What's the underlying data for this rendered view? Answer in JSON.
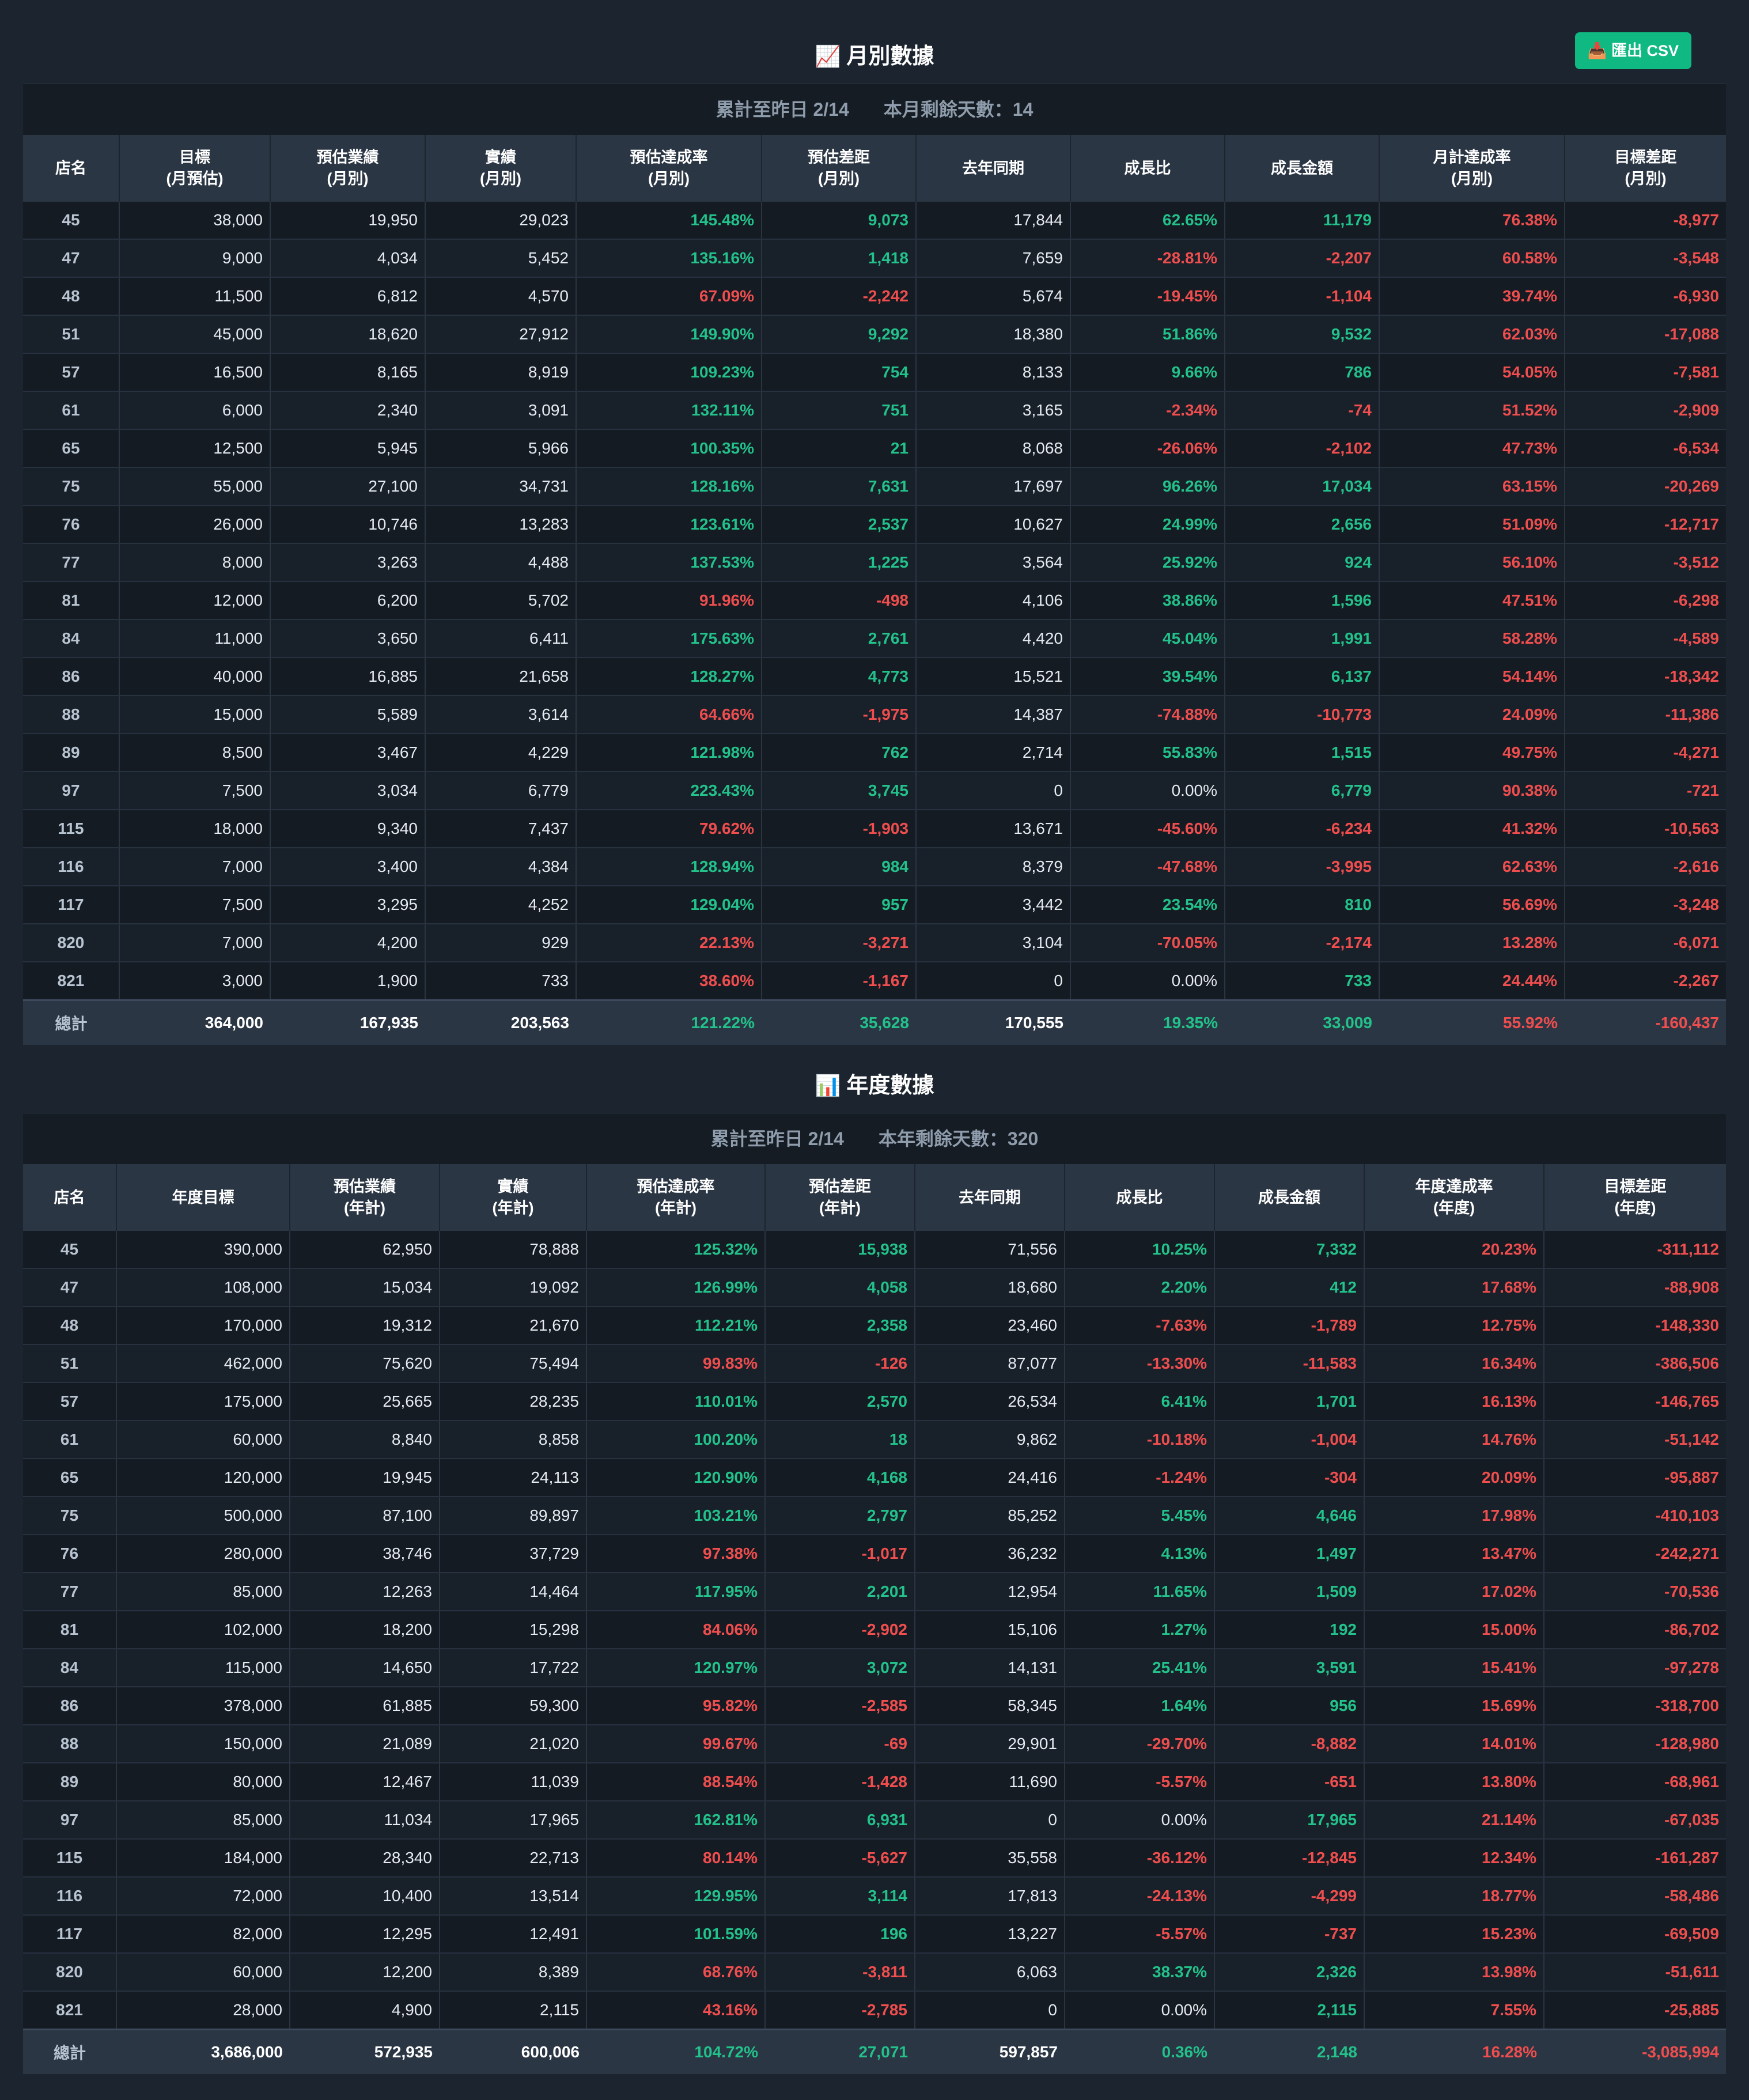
{
  "colors": {
    "positive": "#22c28a",
    "negative": "#f04e4e",
    "accent": "#10b981",
    "background": "#1c252f"
  },
  "export_button": {
    "icon": "inbox-tray-icon",
    "label": "📥 匯出 CSV"
  },
  "monthly": {
    "icon": "chart-increasing-icon",
    "icon_glyph": "📈",
    "title": "月別數據",
    "info_left": "累計至昨日 2/14",
    "info_right": "本月剩餘天數：14",
    "headers": [
      "店名",
      "目標\n(月預估)",
      "預估業績\n(月別)",
      "實績\n(月別)",
      "預估達成率\n(月別)",
      "預估差距\n(月別)",
      "去年同期",
      "成長比",
      "成長金額",
      "月計達成率\n(月別)",
      "目標差距\n(月別)"
    ],
    "rows": [
      [
        "45",
        "38,000",
        "19,950",
        "29,023",
        "145.48%",
        "9,073",
        "17,844",
        "62.65%",
        "11,179",
        "76.38%",
        "-8,977"
      ],
      [
        "47",
        "9,000",
        "4,034",
        "5,452",
        "135.16%",
        "1,418",
        "7,659",
        "-28.81%",
        "-2,207",
        "60.58%",
        "-3,548"
      ],
      [
        "48",
        "11,500",
        "6,812",
        "4,570",
        "67.09%",
        "-2,242",
        "5,674",
        "-19.45%",
        "-1,104",
        "39.74%",
        "-6,930"
      ],
      [
        "51",
        "45,000",
        "18,620",
        "27,912",
        "149.90%",
        "9,292",
        "18,380",
        "51.86%",
        "9,532",
        "62.03%",
        "-17,088"
      ],
      [
        "57",
        "16,500",
        "8,165",
        "8,919",
        "109.23%",
        "754",
        "8,133",
        "9.66%",
        "786",
        "54.05%",
        "-7,581"
      ],
      [
        "61",
        "6,000",
        "2,340",
        "3,091",
        "132.11%",
        "751",
        "3,165",
        "-2.34%",
        "-74",
        "51.52%",
        "-2,909"
      ],
      [
        "65",
        "12,500",
        "5,945",
        "5,966",
        "100.35%",
        "21",
        "8,068",
        "-26.06%",
        "-2,102",
        "47.73%",
        "-6,534"
      ],
      [
        "75",
        "55,000",
        "27,100",
        "34,731",
        "128.16%",
        "7,631",
        "17,697",
        "96.26%",
        "17,034",
        "63.15%",
        "-20,269"
      ],
      [
        "76",
        "26,000",
        "10,746",
        "13,283",
        "123.61%",
        "2,537",
        "10,627",
        "24.99%",
        "2,656",
        "51.09%",
        "-12,717"
      ],
      [
        "77",
        "8,000",
        "3,263",
        "4,488",
        "137.53%",
        "1,225",
        "3,564",
        "25.92%",
        "924",
        "56.10%",
        "-3,512"
      ],
      [
        "81",
        "12,000",
        "6,200",
        "5,702",
        "91.96%",
        "-498",
        "4,106",
        "38.86%",
        "1,596",
        "47.51%",
        "-6,298"
      ],
      [
        "84",
        "11,000",
        "3,650",
        "6,411",
        "175.63%",
        "2,761",
        "4,420",
        "45.04%",
        "1,991",
        "58.28%",
        "-4,589"
      ],
      [
        "86",
        "40,000",
        "16,885",
        "21,658",
        "128.27%",
        "4,773",
        "15,521",
        "39.54%",
        "6,137",
        "54.14%",
        "-18,342"
      ],
      [
        "88",
        "15,000",
        "5,589",
        "3,614",
        "64.66%",
        "-1,975",
        "14,387",
        "-74.88%",
        "-10,773",
        "24.09%",
        "-11,386"
      ],
      [
        "89",
        "8,500",
        "3,467",
        "4,229",
        "121.98%",
        "762",
        "2,714",
        "55.83%",
        "1,515",
        "49.75%",
        "-4,271"
      ],
      [
        "97",
        "7,500",
        "3,034",
        "6,779",
        "223.43%",
        "3,745",
        "0",
        "0.00%",
        "6,779",
        "90.38%",
        "-721"
      ],
      [
        "115",
        "18,000",
        "9,340",
        "7,437",
        "79.62%",
        "-1,903",
        "13,671",
        "-45.60%",
        "-6,234",
        "41.32%",
        "-10,563"
      ],
      [
        "116",
        "7,000",
        "3,400",
        "4,384",
        "128.94%",
        "984",
        "8,379",
        "-47.68%",
        "-3,995",
        "62.63%",
        "-2,616"
      ],
      [
        "117",
        "7,500",
        "3,295",
        "4,252",
        "129.04%",
        "957",
        "3,442",
        "23.54%",
        "810",
        "56.69%",
        "-3,248"
      ],
      [
        "820",
        "7,000",
        "4,200",
        "929",
        "22.13%",
        "-3,271",
        "3,104",
        "-70.05%",
        "-2,174",
        "13.28%",
        "-6,071"
      ],
      [
        "821",
        "3,000",
        "1,900",
        "733",
        "38.60%",
        "-1,167",
        "0",
        "0.00%",
        "733",
        "24.44%",
        "-2,267"
      ]
    ],
    "total": [
      "總計",
      "364,000",
      "167,935",
      "203,563",
      "121.22%",
      "35,628",
      "170,555",
      "19.35%",
      "33,009",
      "55.92%",
      "-160,437"
    ]
  },
  "yearly": {
    "icon": "bar-chart-icon",
    "icon_glyph": "📊",
    "title": "年度數據",
    "info_left": "累計至昨日 2/14",
    "info_right": "本年剩餘天數：320",
    "headers": [
      "店名",
      "年度目標",
      "預估業績\n(年計)",
      "實績\n(年計)",
      "預估達成率\n(年計)",
      "預估差距\n(年計)",
      "去年同期",
      "成長比",
      "成長金額",
      "年度達成率\n(年度)",
      "目標差距\n(年度)"
    ],
    "rows": [
      [
        "45",
        "390,000",
        "62,950",
        "78,888",
        "125.32%",
        "15,938",
        "71,556",
        "10.25%",
        "7,332",
        "20.23%",
        "-311,112"
      ],
      [
        "47",
        "108,000",
        "15,034",
        "19,092",
        "126.99%",
        "4,058",
        "18,680",
        "2.20%",
        "412",
        "17.68%",
        "-88,908"
      ],
      [
        "48",
        "170,000",
        "19,312",
        "21,670",
        "112.21%",
        "2,358",
        "23,460",
        "-7.63%",
        "-1,789",
        "12.75%",
        "-148,330"
      ],
      [
        "51",
        "462,000",
        "75,620",
        "75,494",
        "99.83%",
        "-126",
        "87,077",
        "-13.30%",
        "-11,583",
        "16.34%",
        "-386,506"
      ],
      [
        "57",
        "175,000",
        "25,665",
        "28,235",
        "110.01%",
        "2,570",
        "26,534",
        "6.41%",
        "1,701",
        "16.13%",
        "-146,765"
      ],
      [
        "61",
        "60,000",
        "8,840",
        "8,858",
        "100.20%",
        "18",
        "9,862",
        "-10.18%",
        "-1,004",
        "14.76%",
        "-51,142"
      ],
      [
        "65",
        "120,000",
        "19,945",
        "24,113",
        "120.90%",
        "4,168",
        "24,416",
        "-1.24%",
        "-304",
        "20.09%",
        "-95,887"
      ],
      [
        "75",
        "500,000",
        "87,100",
        "89,897",
        "103.21%",
        "2,797",
        "85,252",
        "5.45%",
        "4,646",
        "17.98%",
        "-410,103"
      ],
      [
        "76",
        "280,000",
        "38,746",
        "37,729",
        "97.38%",
        "-1,017",
        "36,232",
        "4.13%",
        "1,497",
        "13.47%",
        "-242,271"
      ],
      [
        "77",
        "85,000",
        "12,263",
        "14,464",
        "117.95%",
        "2,201",
        "12,954",
        "11.65%",
        "1,509",
        "17.02%",
        "-70,536"
      ],
      [
        "81",
        "102,000",
        "18,200",
        "15,298",
        "84.06%",
        "-2,902",
        "15,106",
        "1.27%",
        "192",
        "15.00%",
        "-86,702"
      ],
      [
        "84",
        "115,000",
        "14,650",
        "17,722",
        "120.97%",
        "3,072",
        "14,131",
        "25.41%",
        "3,591",
        "15.41%",
        "-97,278"
      ],
      [
        "86",
        "378,000",
        "61,885",
        "59,300",
        "95.82%",
        "-2,585",
        "58,345",
        "1.64%",
        "956",
        "15.69%",
        "-318,700"
      ],
      [
        "88",
        "150,000",
        "21,089",
        "21,020",
        "99.67%",
        "-69",
        "29,901",
        "-29.70%",
        "-8,882",
        "14.01%",
        "-128,980"
      ],
      [
        "89",
        "80,000",
        "12,467",
        "11,039",
        "88.54%",
        "-1,428",
        "11,690",
        "-5.57%",
        "-651",
        "13.80%",
        "-68,961"
      ],
      [
        "97",
        "85,000",
        "11,034",
        "17,965",
        "162.81%",
        "6,931",
        "0",
        "0.00%",
        "17,965",
        "21.14%",
        "-67,035"
      ],
      [
        "115",
        "184,000",
        "28,340",
        "22,713",
        "80.14%",
        "-5,627",
        "35,558",
        "-36.12%",
        "-12,845",
        "12.34%",
        "-161,287"
      ],
      [
        "116",
        "72,000",
        "10,400",
        "13,514",
        "129.95%",
        "3,114",
        "17,813",
        "-24.13%",
        "-4,299",
        "18.77%",
        "-58,486"
      ],
      [
        "117",
        "82,000",
        "12,295",
        "12,491",
        "101.59%",
        "196",
        "13,227",
        "-5.57%",
        "-737",
        "15.23%",
        "-69,509"
      ],
      [
        "820",
        "60,000",
        "12,200",
        "8,389",
        "68.76%",
        "-3,811",
        "6,063",
        "38.37%",
        "2,326",
        "13.98%",
        "-51,611"
      ],
      [
        "821",
        "28,000",
        "4,900",
        "2,115",
        "43.16%",
        "-2,785",
        "0",
        "0.00%",
        "2,115",
        "7.55%",
        "-25,885"
      ]
    ],
    "total": [
      "總計",
      "3,686,000",
      "572,935",
      "600,006",
      "104.72%",
      "27,071",
      "597,857",
      "0.36%",
      "2,148",
      "16.28%",
      "-3,085,994"
    ]
  }
}
